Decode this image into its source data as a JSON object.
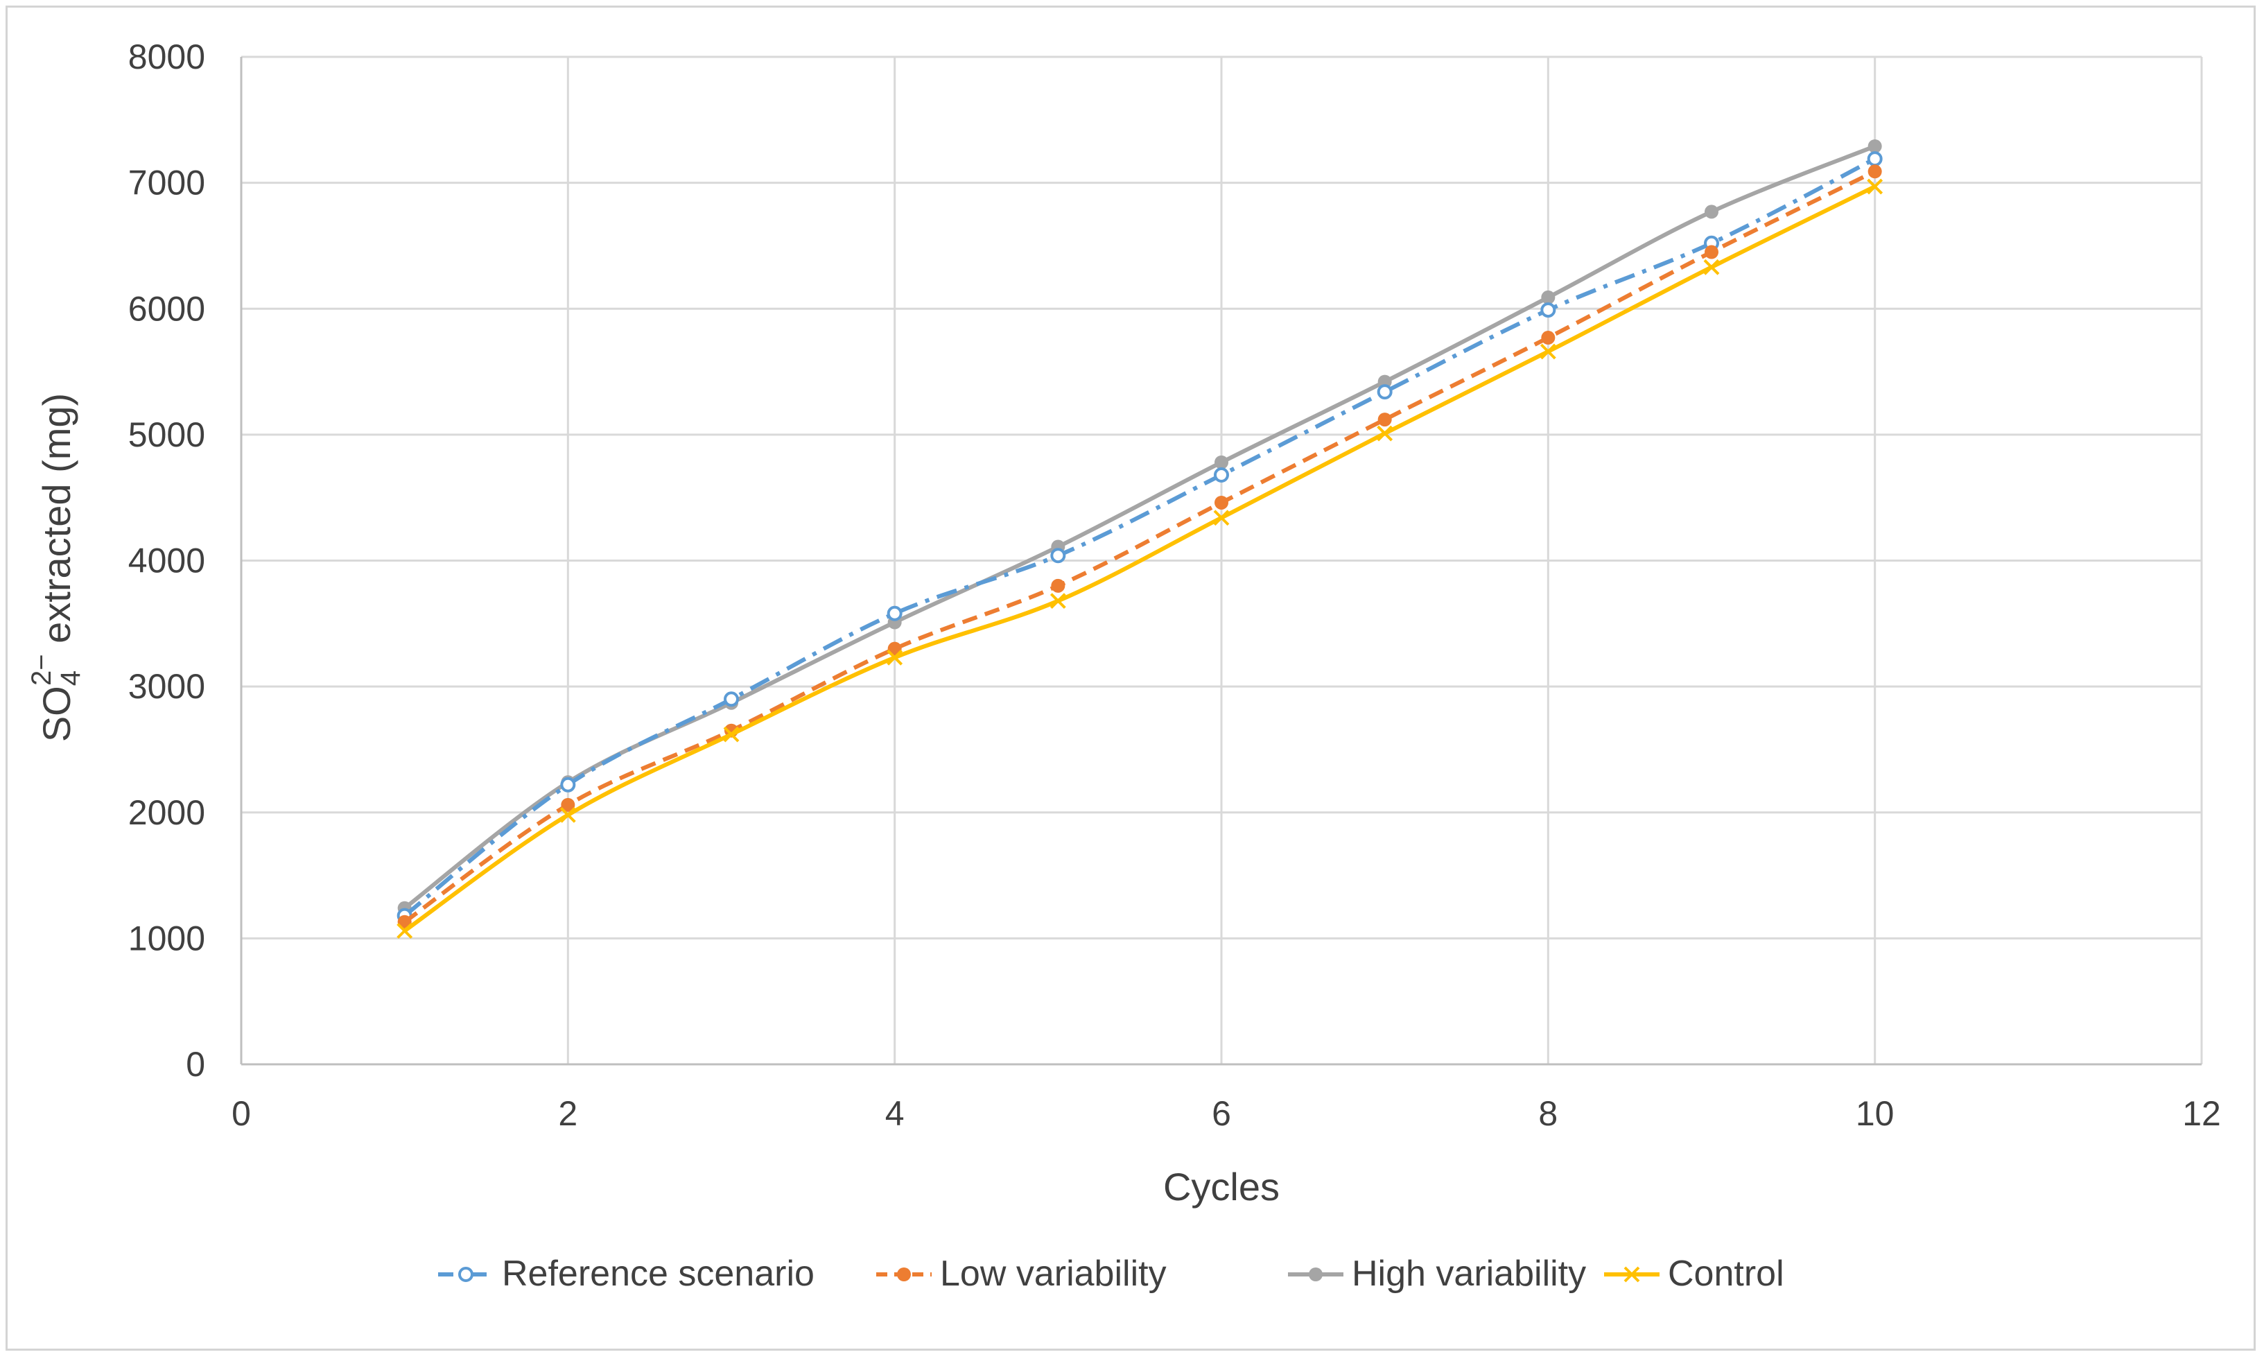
{
  "chart_data": {
    "type": "line",
    "title": "",
    "xlabel": "Cycles",
    "ylabel": {
      "base": "SO",
      "subscript": "4",
      "superscript": "2−",
      "rest": " extracted (mg)"
    },
    "xlim": [
      0,
      12
    ],
    "ylim": [
      0,
      8000
    ],
    "xticks": [
      0,
      2,
      4,
      6,
      8,
      10,
      12
    ],
    "yticks": [
      0,
      1000,
      2000,
      3000,
      4000,
      5000,
      6000,
      7000,
      8000
    ],
    "grid": true,
    "legend_position": "bottom",
    "x": [
      1,
      2,
      3,
      4,
      5,
      6,
      7,
      8,
      9,
      10
    ],
    "series": [
      {
        "name": "Reference scenario",
        "color": "#5b9bd5",
        "line_style": "dash-dot",
        "marker": "open-circle",
        "values": [
          1180,
          2220,
          2900,
          3580,
          4040,
          4680,
          5340,
          5990,
          6520,
          7190
        ]
      },
      {
        "name": "Low variability",
        "color": "#ed7d31",
        "line_style": "dashed",
        "marker": "filled-circle",
        "values": [
          1130,
          2060,
          2650,
          3300,
          3800,
          4460,
          5120,
          5770,
          6450,
          7090
        ]
      },
      {
        "name": "High variability",
        "color": "#a5a5a5",
        "line_style": "solid",
        "marker": "filled-circle",
        "values": [
          1240,
          2240,
          2870,
          3510,
          4110,
          4780,
          5420,
          6090,
          6770,
          7290
        ]
      },
      {
        "name": "Control",
        "color": "#ffc000",
        "line_style": "solid",
        "marker": "x",
        "values": [
          1060,
          1980,
          2620,
          3230,
          3680,
          4340,
          5010,
          5660,
          6330,
          6970
        ]
      }
    ]
  }
}
